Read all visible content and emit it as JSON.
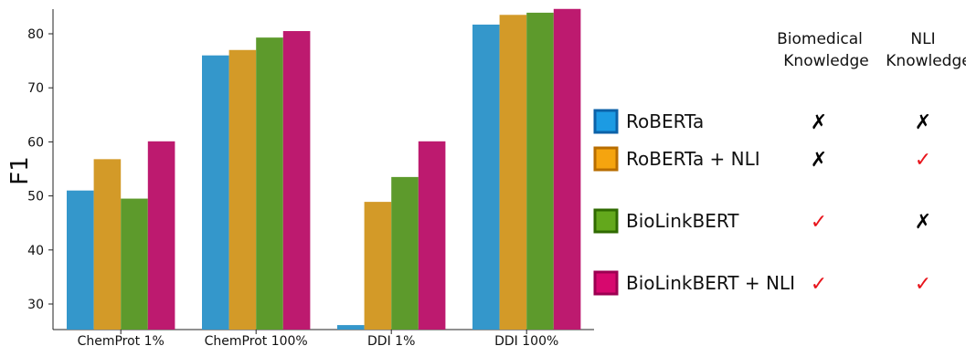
{
  "chart_data": {
    "type": "bar",
    "ylabel": "F1",
    "xlabel": "",
    "title": "",
    "ylim": [
      25,
      85
    ],
    "yticks": [
      30,
      40,
      50,
      60,
      70,
      80
    ],
    "categories": [
      "ChemProt 1%",
      "ChemProt 100%",
      "DDI 1%",
      "DDI 100%"
    ],
    "series": [
      {
        "name": "RoBERTa",
        "color": "#3497cb",
        "legend_color": "#1c9be3",
        "legend_border": "#0c62a8",
        "values": [
          51.0,
          76.0,
          26.1,
          81.7
        ],
        "biomedical": "✗",
        "nli": "✗"
      },
      {
        "name": "RoBERTa + NLI",
        "color": "#d39a28",
        "legend_color": "#f5a40f",
        "legend_border": "#b86d00",
        "values": [
          56.8,
          77.0,
          48.9,
          83.5
        ],
        "biomedical": "✗",
        "nli": "✓"
      },
      {
        "name": "BioLinkBERT",
        "color": "#5d9a2c",
        "legend_color": "#63a81c",
        "legend_border": "#2f6a00",
        "values": [
          49.5,
          79.3,
          53.5,
          83.9
        ],
        "biomedical": "✓",
        "nli": "✗"
      },
      {
        "name": "BioLinkBERT + NLI",
        "color": "#bd1a6f",
        "legend_color": "#d7086e",
        "legend_border": "#9c0052",
        "values": [
          60.1,
          80.5,
          60.1,
          84.6
        ],
        "biomedical": "✓",
        "nli": "✓"
      }
    ],
    "legend_headers": {
      "biomedical": [
        "Biomedical",
        "Knowledge"
      ],
      "nli": [
        "NLI",
        "Knowledge"
      ]
    },
    "grid": false,
    "legend_placement": "right"
  }
}
